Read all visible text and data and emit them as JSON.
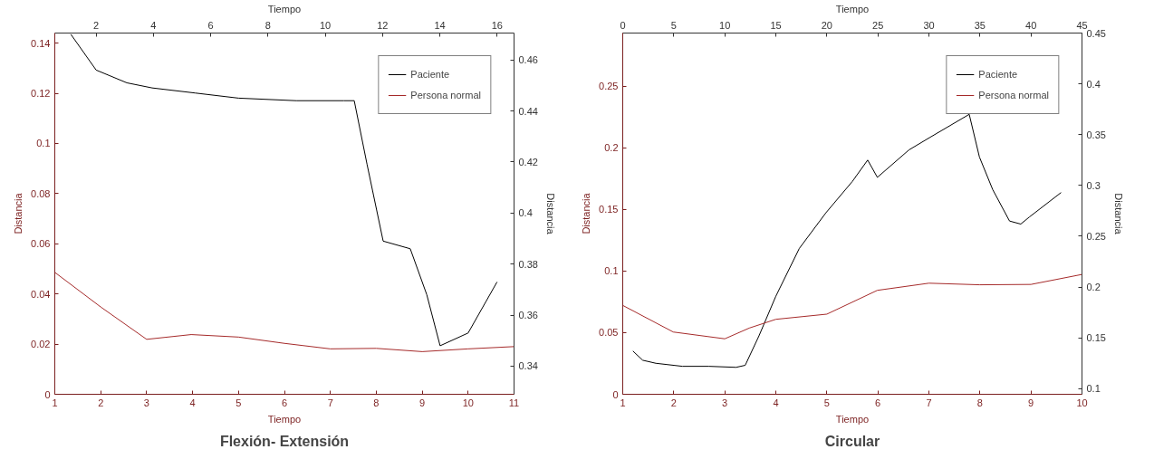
{
  "chart_data": [
    {
      "type": "line",
      "title": "Flexión- Extensión",
      "xlabel": "Tiempo",
      "ylabel": "Distancia",
      "x2label": "Tiempo",
      "y2label": "Distancia",
      "xlim": [
        1,
        11
      ],
      "xticks": [
        1,
        2,
        3,
        4,
        5,
        6,
        7,
        8,
        9,
        10,
        11
      ],
      "ylim": [
        0,
        0.144
      ],
      "yticks": [
        0,
        0.02,
        0.04,
        0.06,
        0.08,
        0.1,
        0.12,
        0.14
      ],
      "x2lim": [
        0.56,
        16.59
      ],
      "x2ticks": [
        2,
        4,
        6,
        8,
        10,
        12,
        14,
        16
      ],
      "y2lim": [
        0.329,
        0.4705
      ],
      "y2ticks": [
        0.34,
        0.36,
        0.38,
        0.4,
        0.42,
        0.44,
        0.46
      ],
      "grid": false,
      "legend": "top right",
      "marker": "none",
      "line_style": "solid",
      "series": [
        {
          "name": "Paciente",
          "color": "#000000",
          "axis": "y2",
          "x": [
            1.35,
            1.9,
            2.57,
            3.12,
            4.06,
            5,
            6.26,
            7.29,
            7.52,
            7.8,
            8.15,
            8.74,
            9.1,
            9.39,
            10,
            10.63
          ],
          "values": [
            0.47,
            0.456,
            0.451,
            0.449,
            0.447,
            0.445,
            0.444,
            0.444,
            0.444,
            0.419,
            0.389,
            0.386,
            0.368,
            0.348,
            0.353,
            0.373
          ]
        },
        {
          "name": "Persona normal",
          "color": "#a52a2a",
          "x": [
            1,
            2,
            3,
            3.97,
            5,
            6,
            7,
            8,
            9,
            10,
            11
          ],
          "values": [
            0.0486,
            0.0348,
            0.0219,
            0.0238,
            0.0228,
            0.0203,
            0.0181,
            0.0183,
            0.017,
            0.0181,
            0.019
          ]
        }
      ]
    },
    {
      "type": "line",
      "title": "Circular",
      "xlabel": "Tiempo",
      "ylabel": "Distancia",
      "x2label": "Tiempo",
      "y2label": "Distancia",
      "xlim": [
        1,
        10
      ],
      "xticks": [
        1,
        2,
        3,
        4,
        5,
        6,
        7,
        8,
        9,
        10
      ],
      "ylim": [
        0,
        0.293
      ],
      "yticks": [
        0,
        0.05,
        0.1,
        0.15,
        0.2,
        0.25
      ],
      "x2lim": [
        0,
        45
      ],
      "x2ticks": [
        0,
        5,
        10,
        15,
        20,
        25,
        30,
        35,
        40,
        45
      ],
      "y2lim": [
        0.0945,
        0.45
      ],
      "y2ticks": [
        0.1,
        0.15,
        0.2,
        0.25,
        0.3,
        0.35,
        0.4,
        0.45
      ],
      "grid": false,
      "legend": "top right",
      "marker": "none",
      "line_style": "solid",
      "series": [
        {
          "name": "Paciente",
          "color": "#000000",
          "axis": "y2",
          "x": [
            1.2,
            1.39,
            1.65,
            2.17,
            2.69,
            3.22,
            3.4,
            3.67,
            4,
            4.46,
            4.98,
            5.5,
            5.8,
            5.99,
            6.61,
            7.01,
            7.79,
            7.99,
            8.25,
            8.58,
            8.8,
            8.97,
            9.59
          ],
          "values": [
            0.137,
            0.128,
            0.125,
            0.122,
            0.122,
            0.121,
            0.123,
            0.152,
            0.191,
            0.238,
            0.273,
            0.304,
            0.325,
            0.308,
            0.335,
            0.347,
            0.37,
            0.328,
            0.296,
            0.265,
            0.262,
            0.269,
            0.293
          ]
        },
        {
          "name": "Persona normal",
          "color": "#a52a2a",
          "x": [
            1,
            1.99,
            3,
            3.48,
            4,
            5,
            5.99,
            7,
            7.99,
            9,
            10
          ],
          "values": [
            0.0721,
            0.0505,
            0.045,
            0.0537,
            0.0608,
            0.065,
            0.0843,
            0.0901,
            0.0888,
            0.0891,
            0.0972
          ]
        }
      ]
    }
  ]
}
